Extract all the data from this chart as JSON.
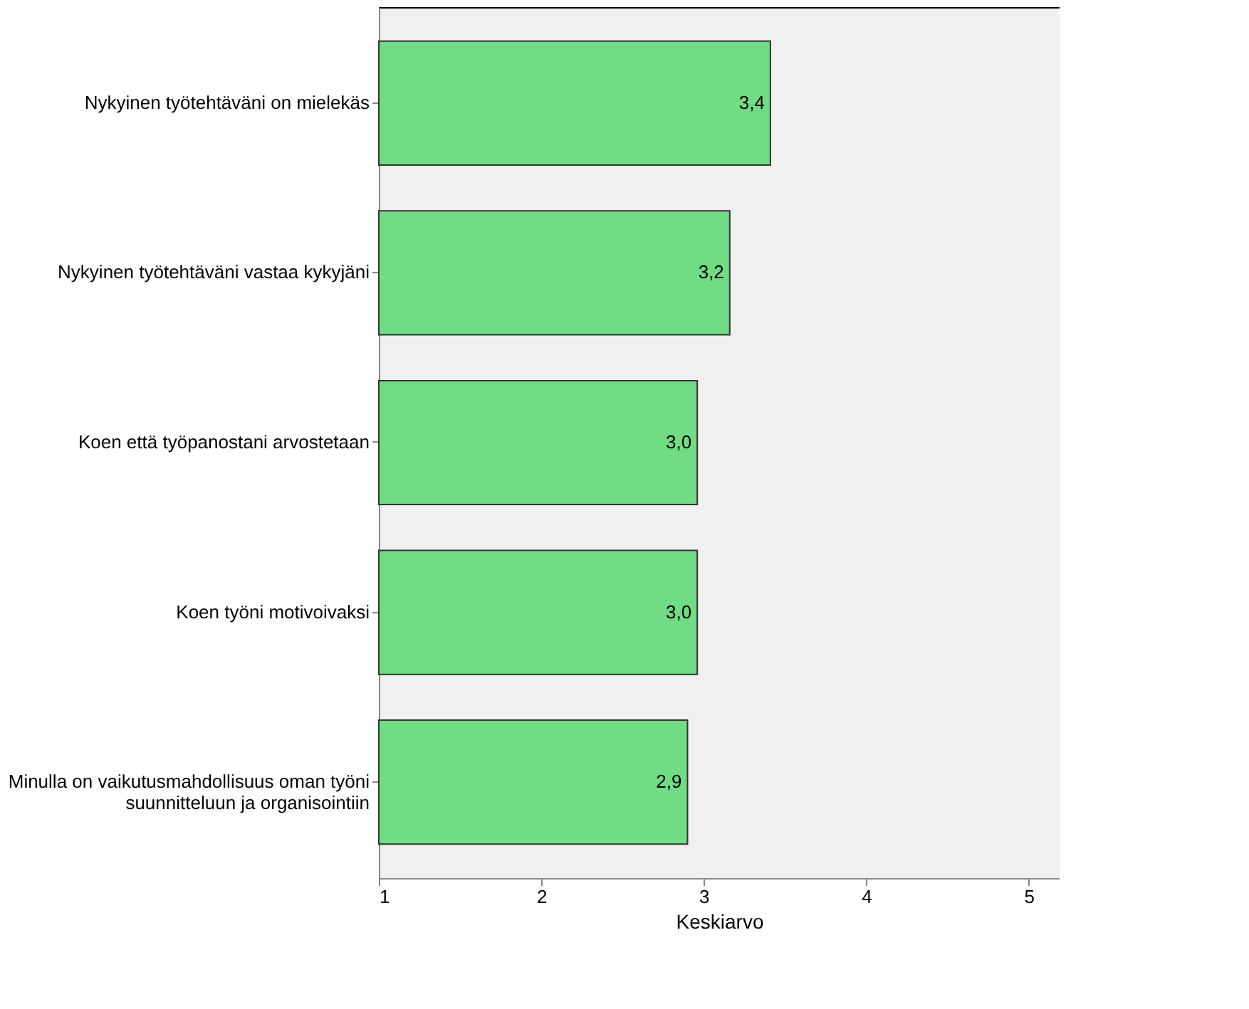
{
  "chart_data": {
    "type": "bar",
    "orientation": "horizontal",
    "xlabel": "Keskiarvo",
    "categories": [
      "Nykyinen työtehtäväni on mielekäs",
      "Nykyinen työtehtäväni vastaa kykyjäni",
      "Koen että työpanostani arvostetaan",
      "Koen työni motivoivaksi",
      "Minulla on vaikutusmahdollisuus oman työni\nsuunnitteluun ja organisointiin"
    ],
    "values": [
      3.41,
      3.16,
      2.96,
      2.96,
      2.9
    ],
    "value_labels": [
      "3,4",
      "3,2",
      "3,0",
      "3,0",
      "2,9"
    ],
    "color": "#70dc84",
    "xlim": [
      1,
      5.19
    ],
    "xticks": [
      1,
      2,
      3,
      4,
      5
    ]
  }
}
